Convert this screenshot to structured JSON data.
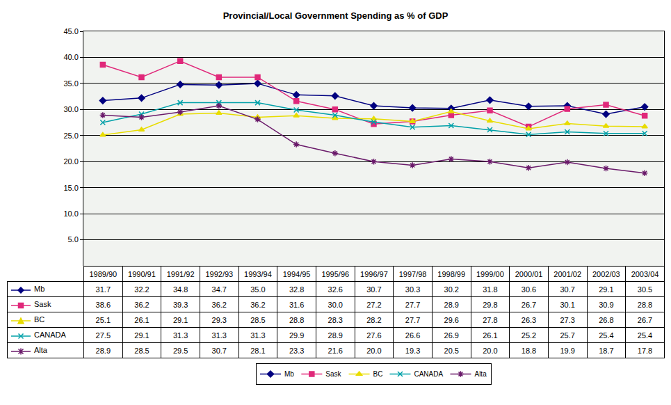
{
  "chart_data": {
    "type": "line",
    "title": "Provincial/Local Government Spending as % of GDP",
    "categories": [
      "1989/90",
      "1990/91",
      "1991/92",
      "1992/93",
      "1993/94",
      "1994/95",
      "1995/96",
      "1996/97",
      "1997/98",
      "1998/99",
      "1999/00",
      "2000/01",
      "2001/02",
      "2002/03",
      "2003/04"
    ],
    "series": [
      {
        "name": "Mb",
        "color": "#000080",
        "marker": "diamond",
        "values": [
          31.7,
          32.2,
          34.8,
          34.7,
          35.0,
          32.8,
          32.6,
          30.7,
          30.3,
          30.2,
          31.8,
          30.6,
          30.7,
          29.1,
          30.5
        ],
        "value_labels": [
          "31.7",
          "32.2",
          "34.8",
          "34.7",
          "35.0",
          "32.8",
          "32.6",
          "30.7",
          "30.3",
          "30.2",
          "31.8",
          "30.6",
          "30.7",
          "29.1",
          "30.5"
        ]
      },
      {
        "name": "Sask",
        "color": "#e0287a",
        "marker": "square",
        "values": [
          38.6,
          36.2,
          39.3,
          36.2,
          36.2,
          31.6,
          30.0,
          27.2,
          27.7,
          28.9,
          29.8,
          26.7,
          30.1,
          30.9,
          28.8
        ],
        "value_labels": [
          "38.6",
          "36.2",
          "39.3",
          "36.2",
          "36.2",
          "31.6",
          "30.0",
          "27.2",
          "27.7",
          "28.9",
          "29.8",
          "26.7",
          "30.1",
          "30.9",
          "28.8"
        ]
      },
      {
        "name": "BC",
        "color": "#e8dc00",
        "marker": "triangle",
        "values": [
          25.1,
          26.1,
          29.1,
          29.3,
          28.5,
          28.8,
          28.3,
          28.2,
          27.7,
          29.6,
          27.8,
          26.3,
          27.3,
          26.8,
          26.7
        ],
        "value_labels": [
          "25.1",
          "26.1",
          "29.1",
          "29.3",
          "28.5",
          "28.8",
          "28.3",
          "28.2",
          "27.7",
          "29.6",
          "27.8",
          "26.3",
          "27.3",
          "26.8",
          "26.7"
        ]
      },
      {
        "name": "CANADA",
        "color": "#00a0a8",
        "marker": "x",
        "values": [
          27.5,
          29.1,
          31.3,
          31.3,
          31.3,
          29.9,
          28.9,
          27.6,
          26.6,
          26.9,
          26.1,
          25.2,
          25.7,
          25.4,
          25.4
        ],
        "value_labels": [
          "27.5",
          "29.1",
          "31.3",
          "31.3",
          "31.3",
          "29.9",
          "28.9",
          "27.6",
          "26.6",
          "26.9",
          "26.1",
          "25.2",
          "25.7",
          "25.4",
          "25.4"
        ]
      },
      {
        "name": "Alta",
        "color": "#6a1a6a",
        "marker": "star",
        "values": [
          28.9,
          28.5,
          29.5,
          30.7,
          28.1,
          23.3,
          21.6,
          20.0,
          19.3,
          20.5,
          20.0,
          18.8,
          19.9,
          18.7,
          17.8
        ],
        "value_labels": [
          "28.9",
          "28.5",
          "29.5",
          "30.7",
          "28.1",
          "23.3",
          "21.6",
          "20.0",
          "19.3",
          "20.5",
          "20.0",
          "18.8",
          "19.9",
          "18.7",
          "17.8"
        ]
      }
    ],
    "ylim": [
      0,
      45
    ],
    "yticks": [
      {
        "value": 0,
        "label": "-"
      },
      {
        "value": 5,
        "label": "5.0"
      },
      {
        "value": 10,
        "label": "10.0"
      },
      {
        "value": 15,
        "label": "15.0"
      },
      {
        "value": 20,
        "label": "20.0"
      },
      {
        "value": 25,
        "label": "25.0"
      },
      {
        "value": 30,
        "label": "30.0"
      },
      {
        "value": 35,
        "label": "35.0"
      },
      {
        "value": 40,
        "label": "40.0"
      },
      {
        "value": 45,
        "label": "45.0"
      }
    ],
    "grid": true,
    "legend": "bottom",
    "tick_labels": "y"
  }
}
